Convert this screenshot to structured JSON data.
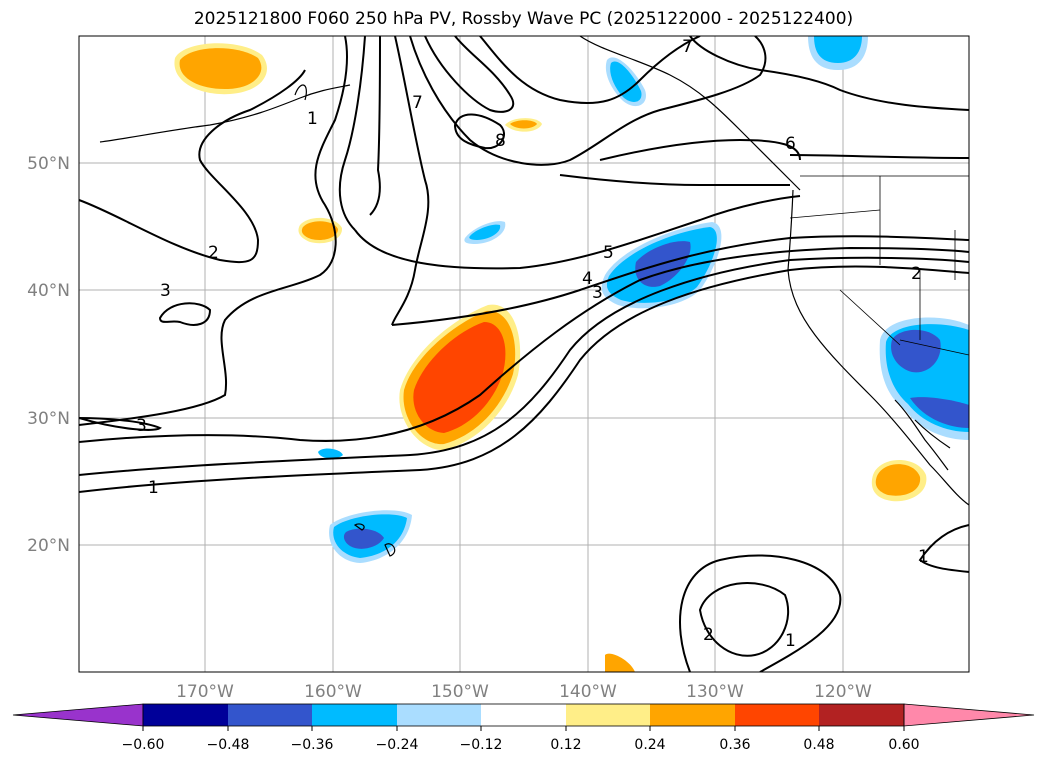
{
  "title": "2025121800 F060 250 hPa PV, Rossby Wave PC (2025122000 - 2025122400)",
  "lon_ticks": [
    "170°W",
    "160°W",
    "150°W",
    "140°W",
    "130°W",
    "120°W"
  ],
  "lat_ticks": [
    "50°N",
    "40°N",
    "30°N",
    "20°N"
  ],
  "colorbar": {
    "tick_labels": [
      "−0.60",
      "−0.48",
      "−0.36",
      "−0.24",
      "−0.12",
      "0.12",
      "0.24",
      "0.36",
      "0.48",
      "0.60"
    ],
    "colors": [
      "#9933cc",
      "#000099",
      "#3355cc",
      "#00bbff",
      "#aaddff",
      "#ffffff",
      "#ffee88",
      "#ffa500",
      "#ff4500",
      "#b22222",
      "#ff88aa"
    ]
  },
  "contour_labels": [
    "1",
    "7",
    "8",
    "6",
    "2",
    "3",
    "5",
    "4",
    "3",
    "2",
    "3",
    "1",
    "1",
    "2",
    "1",
    "7"
  ],
  "colors": {
    "orange": "#ffa500",
    "red_orange": "#ff4500",
    "light_yellow": "#ffee88",
    "cyan": "#00bbff",
    "light_blue": "#aaddff",
    "blue": "#3355cc",
    "grid": "#b0b0b0"
  }
}
